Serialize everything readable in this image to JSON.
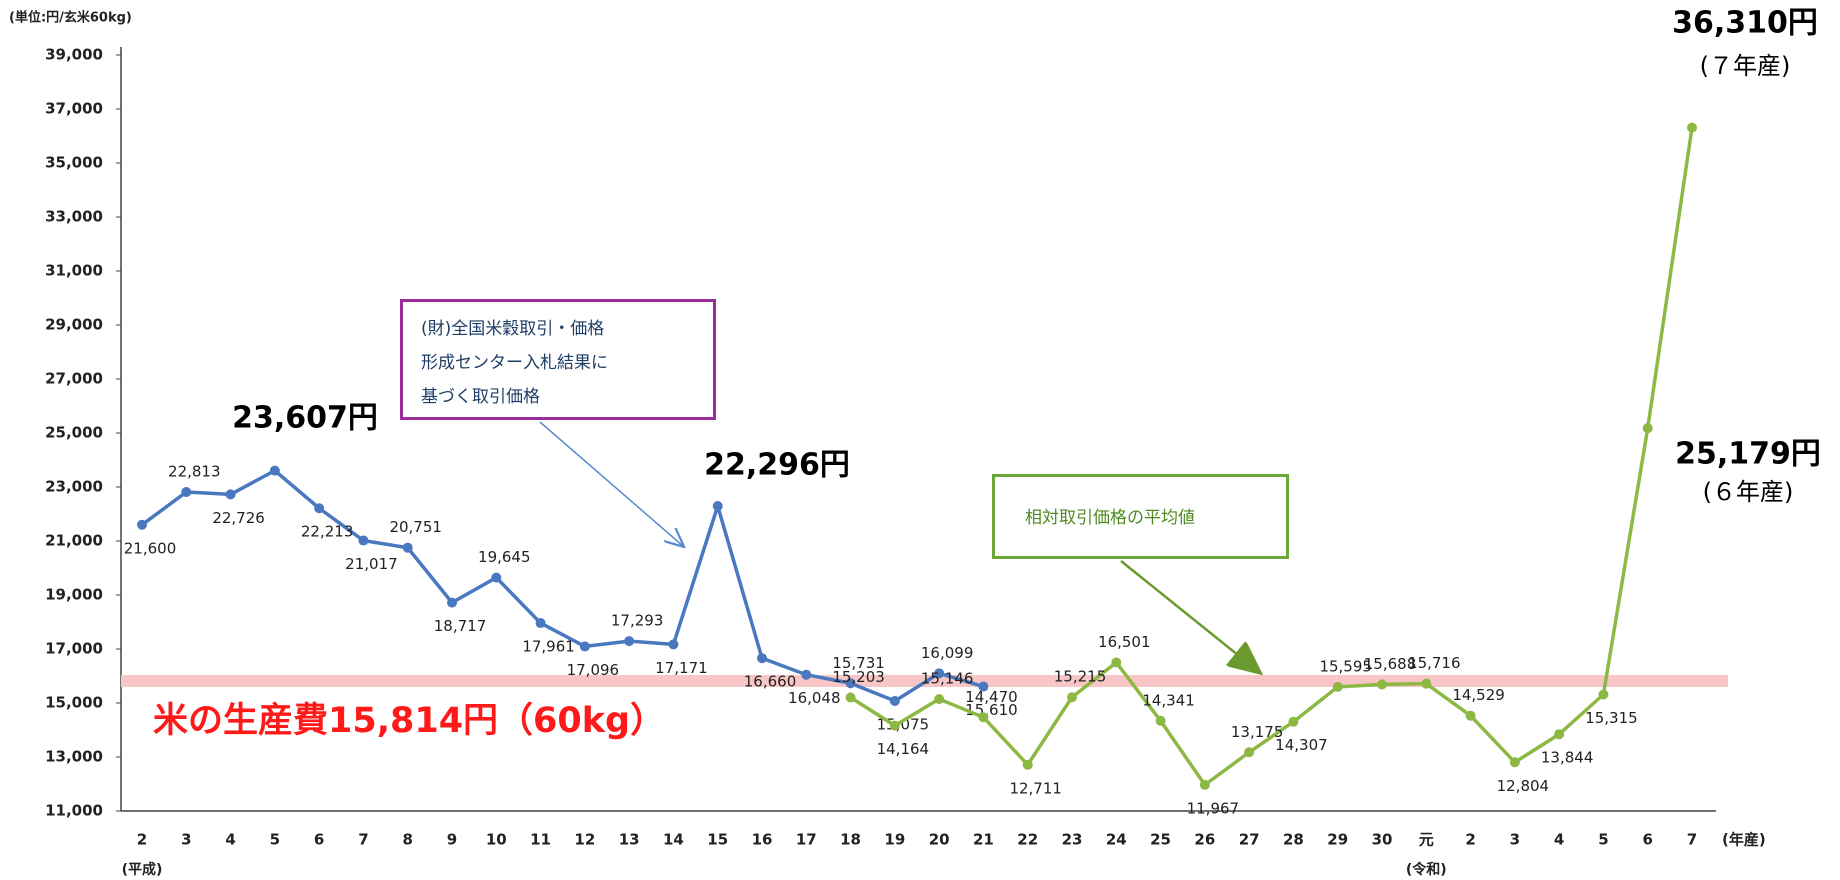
{
  "chart_data": {
    "type": "line",
    "y_label": "(単位:円/玄米60kg)",
    "x_label": "(年産)",
    "era_labels": [
      "(平成)",
      "(令和)"
    ],
    "annotations": [
      "(７年産)",
      "(６年産)"
    ],
    "categories": [
      "2",
      "3",
      "4",
      "5",
      "6",
      "7",
      "8",
      "9",
      "10",
      "11",
      "12",
      "13",
      "14",
      "15",
      "16",
      "17",
      "18",
      "19",
      "20",
      "21",
      "22",
      "23",
      "24",
      "25",
      "26",
      "27",
      "28",
      "29",
      "30",
      "元",
      "2",
      "3",
      "4",
      "5",
      "6",
      "7"
    ],
    "ylim": [
      11000,
      39000
    ],
    "yticks": [
      {
        "value": 11000,
        "label": "11,000"
      },
      {
        "value": 13000,
        "label": "13,000"
      },
      {
        "value": 15000,
        "label": "15,000"
      },
      {
        "value": 17000,
        "label": "17,000"
      },
      {
        "value": 19000,
        "label": "19,000"
      },
      {
        "value": 21000,
        "label": "21,000"
      },
      {
        "value": 23000,
        "label": "23,000"
      },
      {
        "value": 25000,
        "label": "25,000"
      },
      {
        "value": 27000,
        "label": "27,000"
      },
      {
        "value": 29000,
        "label": "29,000"
      },
      {
        "value": 31000,
        "label": "31,000"
      },
      {
        "value": 33000,
        "label": "33,000"
      },
      {
        "value": 35000,
        "label": "35,000"
      },
      {
        "value": 37000,
        "label": "37,000"
      },
      {
        "value": 39000,
        "label": "39,000"
      }
    ],
    "reference_line": {
      "value": 15814,
      "label": "米の生産費15,814円（60kg）",
      "color": "#f8c6c6",
      "label_color": "#ff1a1a"
    },
    "series": [
      {
        "name": "(財)全国米穀取引・価格\n形成センター入札結果に\n基づく取引価格",
        "color": "#4a78c0",
        "values": [
          21600,
          22813,
          22726,
          23607,
          22213,
          21017,
          20751,
          18717,
          19645,
          17961,
          17096,
          17293,
          17171,
          22296,
          16660,
          16048,
          15731,
          15075,
          16099,
          15610,
          null,
          null,
          null,
          null,
          null,
          null,
          null,
          null,
          null,
          null,
          null,
          null,
          null,
          null,
          null,
          null
        ],
        "value_labels": [
          "21,600",
          "22,813",
          "22,726",
          "23,607円",
          "22,213",
          "21,017",
          "20,751",
          "18,717",
          "19,645",
          "17,961",
          "17,096",
          "17,293",
          "17,171",
          "22,296円",
          "16,660",
          "16,048",
          "15,731",
          "15,075",
          "16,099",
          "15,610",
          null,
          null,
          null,
          null,
          null,
          null,
          null,
          null,
          null,
          null,
          null,
          null,
          null,
          null,
          null,
          null
        ]
      },
      {
        "name": "相対取引価格の平均値",
        "color": "#8cb843",
        "values": [
          null,
          null,
          null,
          null,
          null,
          null,
          null,
          null,
          null,
          null,
          null,
          null,
          null,
          null,
          null,
          null,
          15203,
          14164,
          15146,
          14470,
          12711,
          15215,
          16501,
          14341,
          11967,
          13175,
          14307,
          15595,
          15688,
          15716,
          14529,
          12804,
          13844,
          15315,
          25179,
          36310
        ],
        "value_labels": [
          null,
          null,
          null,
          null,
          null,
          null,
          null,
          null,
          null,
          null,
          null,
          null,
          null,
          null,
          null,
          null,
          "15,203",
          "14,164",
          "15,146",
          "14,470",
          "12,711",
          "15,215",
          "16,501",
          "14,341",
          "11,967",
          "13,175",
          "14,307",
          "15,595",
          "15,688",
          "15,716",
          "14,529",
          "12,804",
          "13,844",
          "15,315",
          "25,179円",
          "36,310円"
        ]
      }
    ]
  }
}
